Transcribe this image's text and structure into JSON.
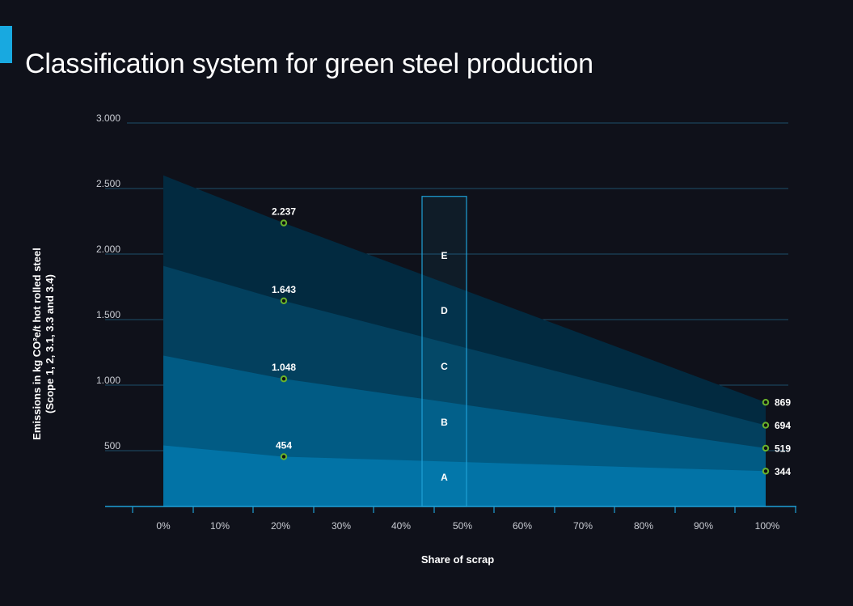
{
  "header": {
    "title": "Classification system for green steel production",
    "accent_color": "#18a9e0"
  },
  "chart_data": {
    "type": "area",
    "title": "Classification system for green steel production",
    "xlabel": "Share of scrap",
    "ylabel_line1": "Emissions in kg CO²e/t hot rolled steel",
    "ylabel_line2": "(Scope 1, 2, 3.1, 3.3 and 3.4)",
    "x_unit": "%",
    "xlim": [
      0,
      100
    ],
    "ylim": [
      0,
      3000
    ],
    "x_ticks": [
      0,
      10,
      20,
      30,
      40,
      50,
      60,
      70,
      80,
      90,
      100
    ],
    "x_tick_labels": [
      "0%",
      "10%",
      "20%",
      "30%",
      "40%",
      "50%",
      "60%",
      "70%",
      "80%",
      "90%",
      "100%"
    ],
    "y_ticks": [
      500,
      1000,
      1500,
      2000,
      2500,
      3000
    ],
    "y_tick_labels": [
      "500",
      "1.000",
      "1.500",
      "2.000",
      "2.500",
      "3.000"
    ],
    "grid": true,
    "series": [
      {
        "name": "E",
        "x": [
          0,
          20,
          100
        ],
        "values": [
          2600,
          2237,
          869
        ],
        "color": "#022a40"
      },
      {
        "name": "D",
        "x": [
          0,
          20,
          100
        ],
        "values": [
          1910,
          1643,
          694
        ],
        "color": "#03405e"
      },
      {
        "name": "C",
        "x": [
          0,
          20,
          100
        ],
        "values": [
          1225,
          1048,
          519
        ],
        "color": "#015b84"
      },
      {
        "name": "B",
        "x": [
          0,
          20,
          100
        ],
        "values": [
          540,
          454,
          344
        ],
        "color": "#0273a6"
      }
    ],
    "annotated_points": [
      {
        "x": 20,
        "y": 2237,
        "label": "2.237"
      },
      {
        "x": 20,
        "y": 1643,
        "label": "1.643"
      },
      {
        "x": 20,
        "y": 1048,
        "label": "1.048"
      },
      {
        "x": 20,
        "y": 454,
        "label": "454"
      },
      {
        "x": 100,
        "y": 869,
        "label": "869"
      },
      {
        "x": 100,
        "y": 694,
        "label": "694"
      },
      {
        "x": 100,
        "y": 519,
        "label": "519"
      },
      {
        "x": 100,
        "y": 344,
        "label": "344"
      }
    ],
    "classes": [
      "E",
      "D",
      "C",
      "B",
      "A"
    ],
    "class_box_x_range": [
      45,
      50
    ],
    "class_box_y_top": 2440,
    "point_color": "#6ab42c",
    "grid_color": "#1d4f6b",
    "axis_color": "#1ea0d6"
  }
}
